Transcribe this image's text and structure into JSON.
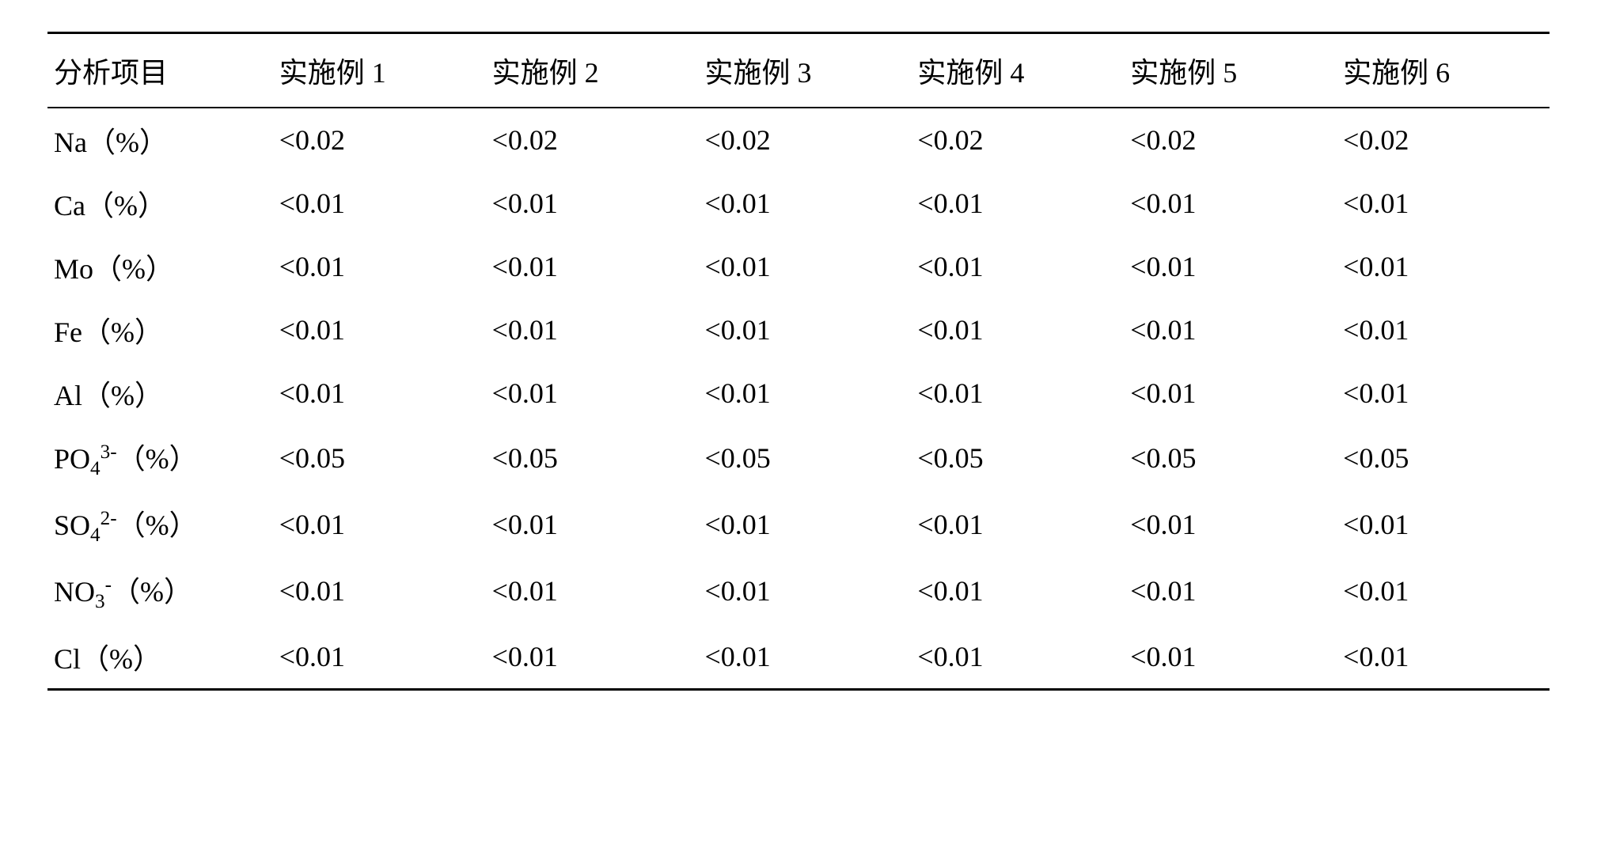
{
  "table": {
    "columns": [
      "分析项目",
      "实施例 1",
      "实施例 2",
      "实施例 3",
      "实施例 4",
      "实施例 5",
      "实施例 6"
    ],
    "rows": [
      {
        "label": "Na（%）",
        "values": [
          "<0.02",
          "<0.02",
          "<0.02",
          "<0.02",
          "<0.02",
          "<0.02"
        ]
      },
      {
        "label": "Ca（%）",
        "values": [
          "<0.01",
          "<0.01",
          "<0.01",
          "<0.01",
          "<0.01",
          "<0.01"
        ]
      },
      {
        "label": "Mo（%）",
        "values": [
          "<0.01",
          "<0.01",
          "<0.01",
          "<0.01",
          "<0.01",
          "<0.01"
        ]
      },
      {
        "label": "Fe（%）",
        "values": [
          "<0.01",
          "<0.01",
          "<0.01",
          "<0.01",
          "<0.01",
          "<0.01"
        ]
      },
      {
        "label": "Al（%）",
        "values": [
          "<0.01",
          "<0.01",
          "<0.01",
          "<0.01",
          "<0.01",
          "<0.01"
        ]
      },
      {
        "label": "PO4 3-（%）",
        "html": "PO<sub>4</sub><sup>3-</sup>（%）",
        "values": [
          "<0.05",
          "<0.05",
          "<0.05",
          "<0.05",
          "<0.05",
          "<0.05"
        ]
      },
      {
        "label": "SO4 2-（%）",
        "html": "SO<sub>4</sub><sup>2-</sup>（%）",
        "values": [
          "<0.01",
          "<0.01",
          "<0.01",
          "<0.01",
          "<0.01",
          "<0.01"
        ]
      },
      {
        "label": "NO3 -（%）",
        "html": "NO<sub>3</sub><sup>-</sup>（%）",
        "values": [
          "<0.01",
          "<0.01",
          "<0.01",
          "<0.01",
          "<0.01",
          "<0.01"
        ]
      },
      {
        "label": "Cl（%）",
        "values": [
          "<0.01",
          "<0.01",
          "<0.01",
          "<0.01",
          "<0.01",
          "<0.01"
        ]
      }
    ],
    "border_color": "#000000",
    "background_color": "#ffffff",
    "font_size": 36
  }
}
